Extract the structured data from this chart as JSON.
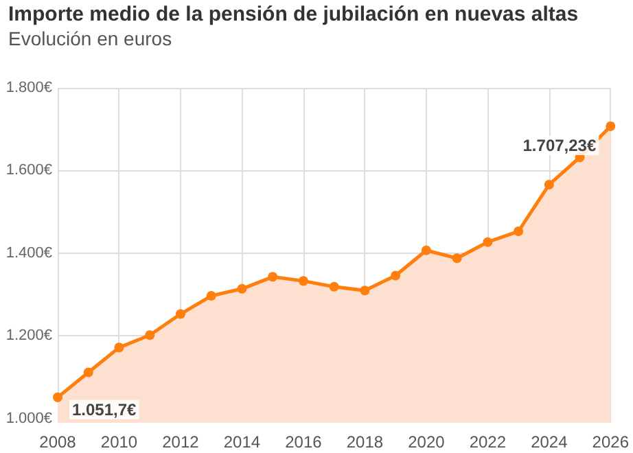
{
  "chart_data": {
    "type": "area",
    "title": "Importe medio de la pensión de jubilación en nuevas altas",
    "subtitle": "Evolución en euros",
    "x": [
      2008,
      2009,
      2010,
      2011,
      2012,
      2013,
      2014,
      2015,
      2016,
      2017,
      2018,
      2019,
      2020,
      2021,
      2022,
      2023,
      2024,
      2025,
      2026
    ],
    "series": [
      {
        "color": "#ff7f0e",
        "values": [
          1051.7,
          1112,
          1172,
          1202,
          1253,
          1297,
          1314,
          1343,
          1333,
          1319,
          1310,
          1346,
          1407,
          1388,
          1427,
          1453,
          1566,
          1632,
          1707.23
        ],
        "value_labels": [
          "1.051,7€",
          null,
          null,
          null,
          null,
          null,
          null,
          null,
          null,
          null,
          null,
          null,
          null,
          null,
          null,
          null,
          null,
          null,
          "1.707,23€"
        ]
      }
    ],
    "xlim": [
      2008,
      2026
    ],
    "xticks": [
      2008,
      2010,
      2012,
      2014,
      2016,
      2018,
      2020,
      2022,
      2024,
      2026
    ],
    "ylim": [
      990,
      1800
    ],
    "yticks": [
      {
        "value": 1000,
        "label": "1.000€"
      },
      {
        "value": 1200,
        "label": "1.200€"
      },
      {
        "value": 1400,
        "label": "1.400€"
      },
      {
        "value": 1600,
        "label": "1.600€"
      },
      {
        "value": 1800,
        "label": "1.800€"
      }
    ],
    "grid": true,
    "marker": "circle",
    "line_style": "solid"
  }
}
